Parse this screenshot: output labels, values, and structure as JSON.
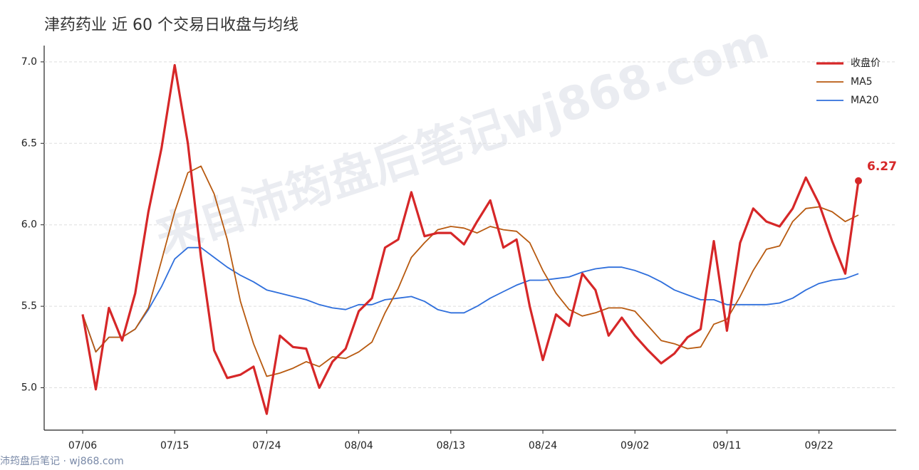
{
  "chart_data": {
    "type": "line",
    "title": "津药药业 近 60 个交易日收盘与均线",
    "watermark": "来自沛筠盘后笔记wj868.com",
    "footer": "沛筠盘后笔记 · wj868.com",
    "categories": [
      "07/06",
      null,
      null,
      null,
      null,
      null,
      null,
      "07/15",
      null,
      null,
      null,
      null,
      null,
      null,
      "07/24",
      null,
      null,
      null,
      null,
      null,
      null,
      "08/04",
      null,
      null,
      null,
      null,
      null,
      null,
      "08/13",
      null,
      null,
      null,
      null,
      null,
      null,
      "08/24",
      null,
      null,
      null,
      null,
      null,
      null,
      "09/02",
      null,
      null,
      null,
      null,
      null,
      null,
      "09/11",
      null,
      null,
      null,
      null,
      null,
      null,
      "09/22",
      null,
      null,
      null
    ],
    "series": [
      {
        "name": "收盘价",
        "color": "#d62728",
        "values": [
          5.45,
          4.99,
          5.49,
          5.29,
          5.58,
          6.08,
          6.47,
          6.98,
          6.5,
          5.8,
          5.23,
          5.06,
          5.08,
          5.13,
          4.84,
          5.32,
          5.25,
          5.24,
          5.0,
          5.16,
          5.24,
          5.47,
          5.55,
          5.86,
          5.91,
          6.2,
          5.93,
          5.95,
          5.95,
          5.88,
          6.02,
          6.15,
          5.86,
          5.91,
          5.5,
          5.17,
          5.45,
          5.38,
          5.7,
          5.6,
          5.32,
          5.43,
          5.32,
          5.23,
          5.15,
          5.21,
          5.31,
          5.36,
          5.9,
          5.35,
          5.89,
          6.1,
          6.02,
          5.99,
          6.1,
          6.29,
          6.13,
          5.9,
          5.7,
          6.27
        ]
      },
      {
        "name": "MA5",
        "color": "#b85a10",
        "values": [
          5.45,
          5.22,
          5.31,
          5.31,
          5.36,
          5.49,
          5.78,
          6.08,
          6.32,
          6.36,
          6.19,
          5.91,
          5.53,
          5.27,
          5.07,
          5.09,
          5.12,
          5.16,
          5.13,
          5.19,
          5.18,
          5.22,
          5.28,
          5.46,
          5.61,
          5.8,
          5.89,
          5.97,
          5.99,
          5.98,
          5.95,
          5.99,
          5.97,
          5.96,
          5.89,
          5.72,
          5.58,
          5.48,
          5.44,
          5.46,
          5.49,
          5.49,
          5.47,
          5.38,
          5.29,
          5.27,
          5.24,
          5.25,
          5.39,
          5.42,
          5.56,
          5.72,
          5.85,
          5.87,
          6.02,
          6.1,
          6.11,
          6.08,
          6.02,
          6.06
        ]
      },
      {
        "name": "MA20",
        "color": "#2f6fdc",
        "values": [
          5.45,
          5.22,
          5.31,
          5.31,
          5.36,
          5.48,
          5.62,
          5.79,
          5.86,
          5.86,
          5.8,
          5.74,
          5.69,
          5.65,
          5.6,
          5.58,
          5.56,
          5.54,
          5.51,
          5.49,
          5.48,
          5.51,
          5.51,
          5.54,
          5.55,
          5.56,
          5.53,
          5.48,
          5.46,
          5.46,
          5.5,
          5.55,
          5.59,
          5.63,
          5.66,
          5.66,
          5.67,
          5.68,
          5.71,
          5.73,
          5.74,
          5.74,
          5.72,
          5.69,
          5.65,
          5.6,
          5.57,
          5.54,
          5.54,
          5.51,
          5.51,
          5.51,
          5.51,
          5.52,
          5.55,
          5.6,
          5.64,
          5.66,
          5.67,
          5.7
        ]
      }
    ],
    "ylim": [
      4.74,
      7.1
    ],
    "yticks": [
      {
        "value": 5.0,
        "label": "5.0"
      },
      {
        "value": 5.5,
        "label": "5.5"
      },
      {
        "value": 6.0,
        "label": "6.0"
      },
      {
        "value": 6.5,
        "label": "6.5"
      },
      {
        "value": 7.0,
        "label": "7.0"
      }
    ],
    "grid": true,
    "legend": "upper right"
  }
}
